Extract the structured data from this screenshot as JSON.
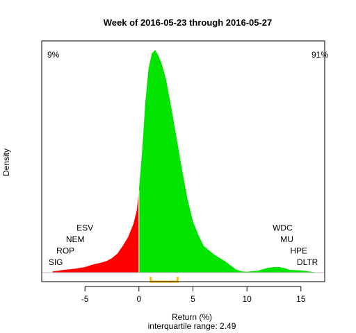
{
  "chart_data": {
    "type": "area",
    "title": "Week of 2016-05-23 through 2016-05-27",
    "xlabel": "Return (%)",
    "ylabel": "Density",
    "subtitle": "interquartile range: 2.49",
    "xlim": [
      -9.0,
      17.2
    ],
    "ylim": [
      0,
      1
    ],
    "xticks": [
      -5,
      0,
      5,
      10,
      15
    ],
    "xtick_labels": [
      "-5",
      "0",
      "5",
      "10",
      "15"
    ],
    "negative_share": "9%",
    "positive_share": "91%",
    "colors": {
      "negative": "#ff0000",
      "positive": "#00e400",
      "iqr": "#ffc000",
      "baseline": "#bebebe"
    },
    "density": {
      "x": [
        -8.0,
        -7.0,
        -6.0,
        -5.0,
        -4.5,
        -4.0,
        -3.5,
        -3.0,
        -2.5,
        -2.0,
        -1.5,
        -1.0,
        -0.5,
        -0.2,
        0.0,
        0.3,
        0.6,
        0.9,
        1.2,
        1.5,
        1.8,
        2.1,
        2.5,
        3.0,
        3.5,
        4.0,
        4.5,
        5.0,
        5.5,
        6.0,
        7.0,
        8.0,
        9.0,
        9.5,
        10.0,
        11.0,
        12.0,
        12.5,
        13.0,
        13.5,
        14.0,
        15.0,
        16.0,
        16.5
      ],
      "y": [
        0.005,
        0.012,
        0.017,
        0.025,
        0.033,
        0.04,
        0.045,
        0.052,
        0.065,
        0.085,
        0.12,
        0.16,
        0.22,
        0.28,
        0.37,
        0.55,
        0.77,
        0.92,
        0.985,
        1.0,
        0.975,
        0.94,
        0.87,
        0.74,
        0.6,
        0.46,
        0.33,
        0.23,
        0.17,
        0.12,
        0.08,
        0.05,
        0.014,
        0.006,
        0.004,
        0.009,
        0.022,
        0.025,
        0.025,
        0.02,
        0.012,
        0.01,
        0.004,
        0.0
      ]
    },
    "iqr": [
      1.09,
      3.58
    ],
    "tickers_left": [
      {
        "label": "ESV",
        "x": -5.0,
        "level": 4
      },
      {
        "label": "NEM",
        "x": -5.9,
        "level": 3
      },
      {
        "label": "ROP",
        "x": -6.8,
        "level": 2
      },
      {
        "label": "SIG",
        "x": -7.7,
        "level": 1
      }
    ],
    "tickers_right": [
      {
        "label": "WDC",
        "x": 13.3,
        "level": 4
      },
      {
        "label": "MU",
        "x": 13.7,
        "level": 3
      },
      {
        "label": "HPE",
        "x": 14.8,
        "level": 2
      },
      {
        "label": "DLTR",
        "x": 15.6,
        "level": 1
      }
    ]
  }
}
